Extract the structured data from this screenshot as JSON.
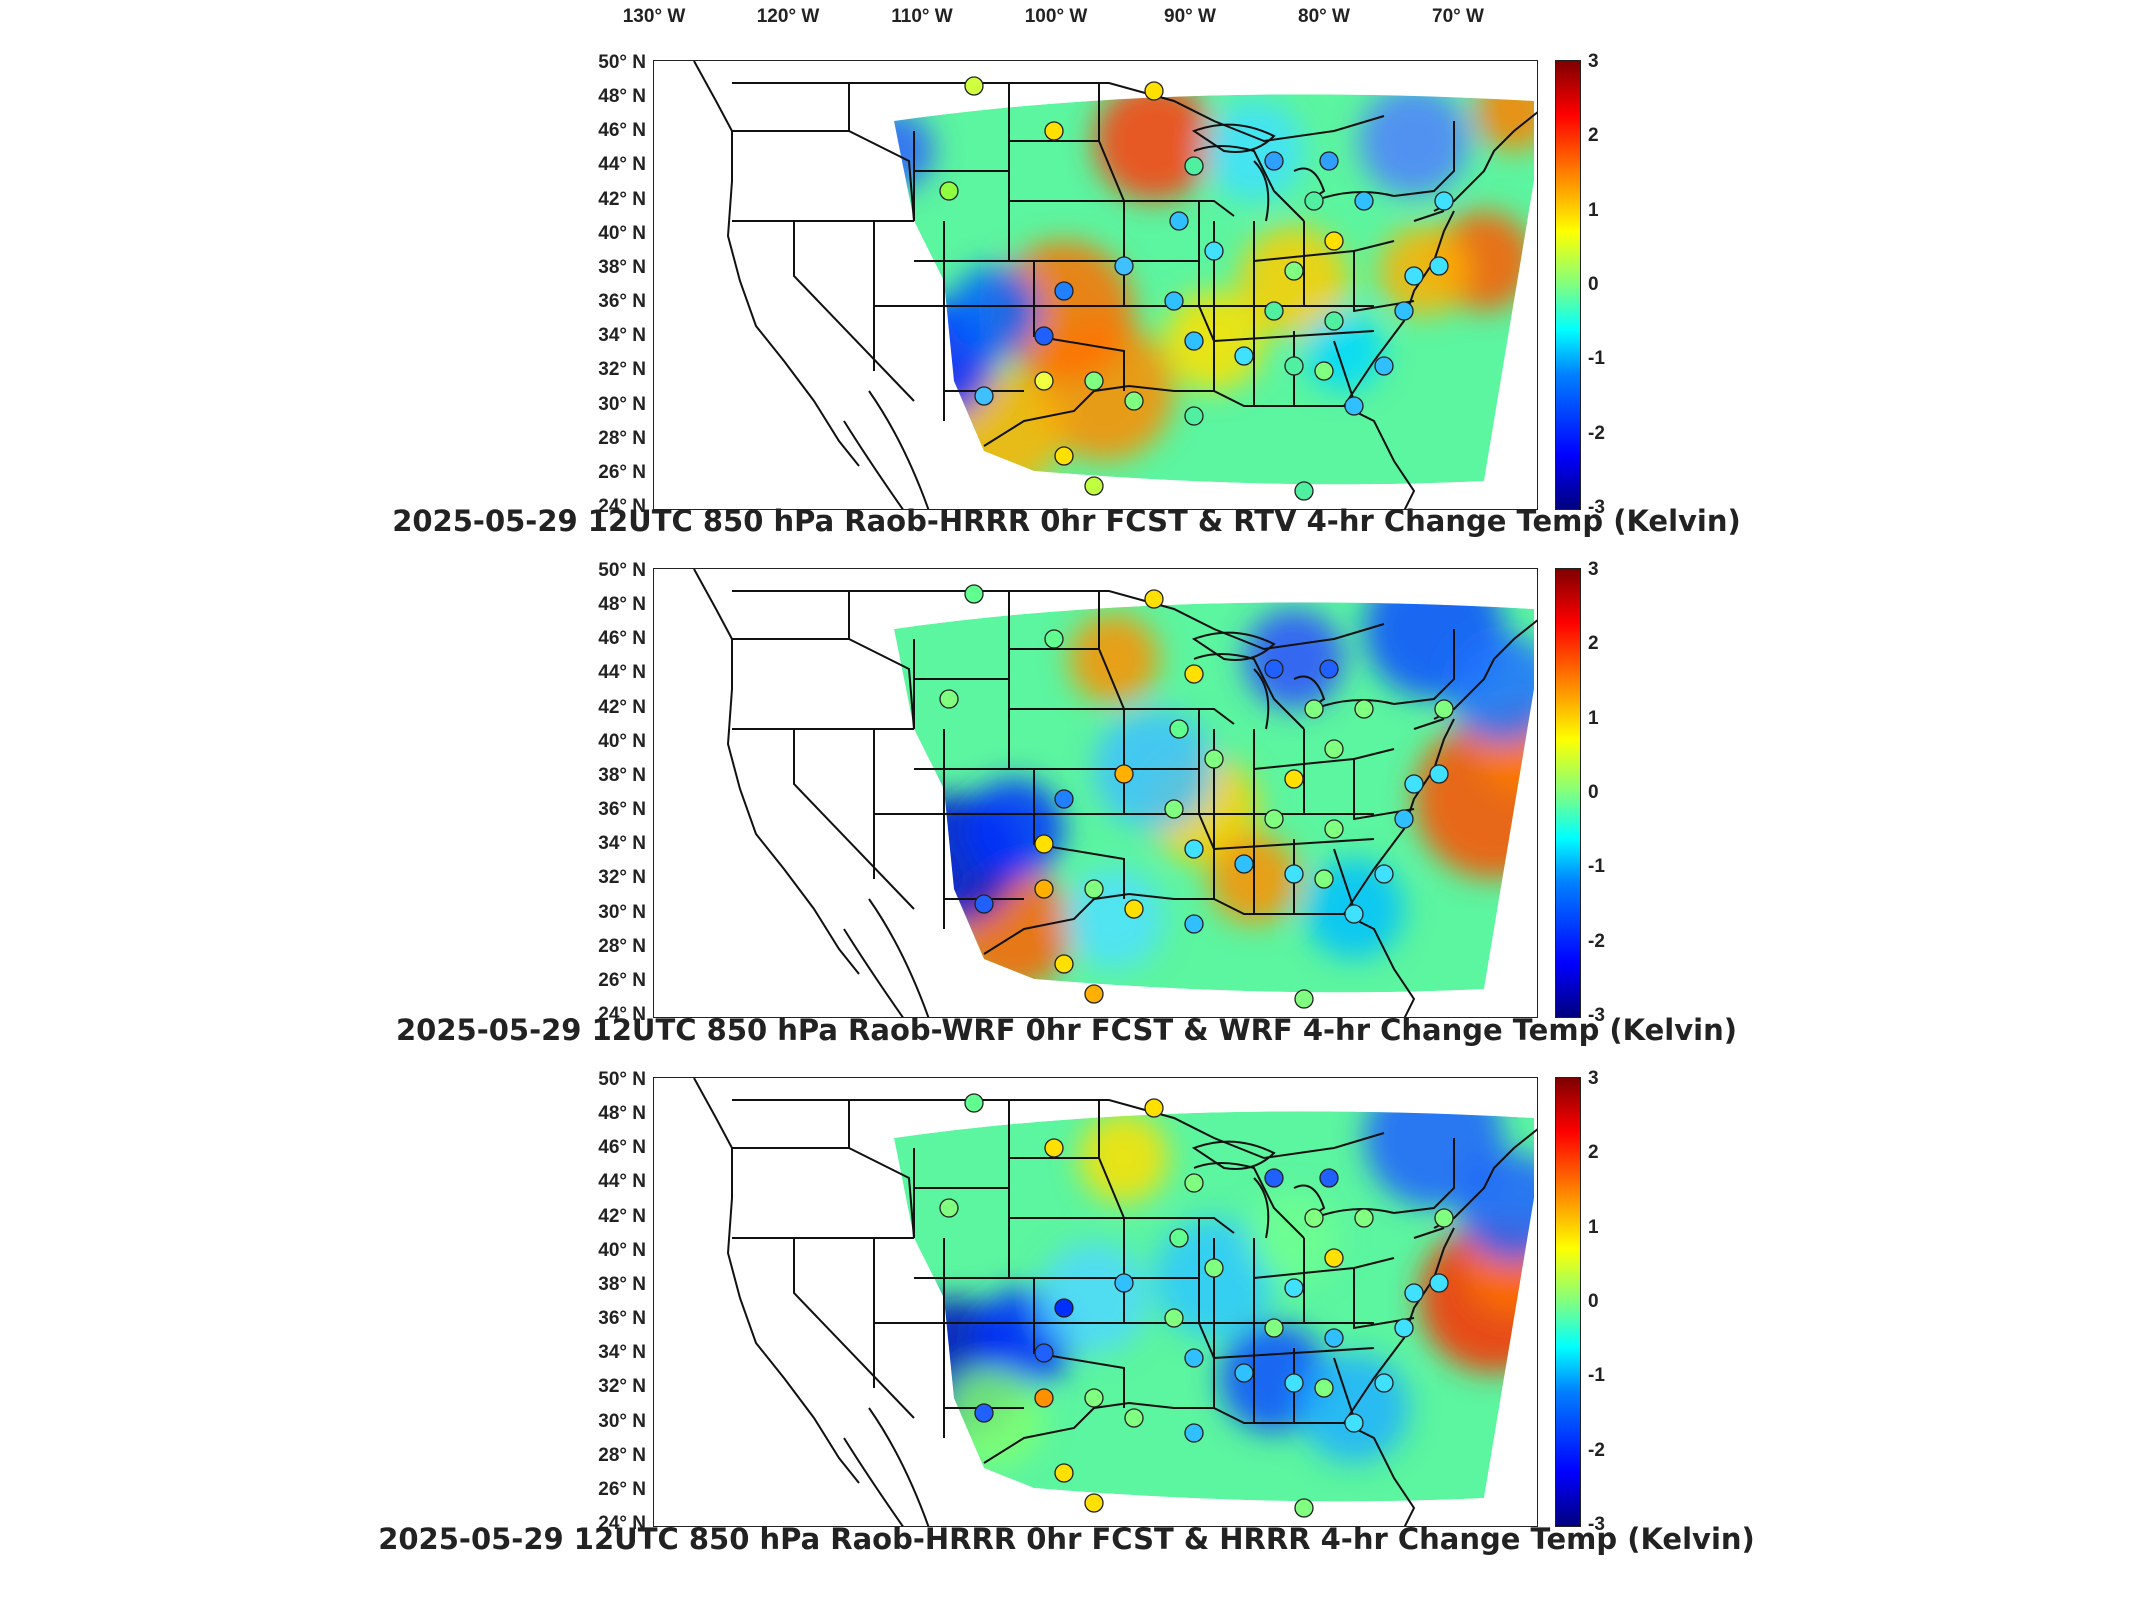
{
  "longitude_labels": [
    "130° W",
    "120° W",
    "110° W",
    "100° W",
    "90° W",
    "80° W",
    "70° W"
  ],
  "latitude_labels": [
    "50° N",
    "48° N",
    "46° N",
    "44° N",
    "42° N",
    "40° N",
    "38° N",
    "36° N",
    "34° N",
    "32° N",
    "30° N",
    "28° N",
    "26° N",
    "24° N"
  ],
  "colorbar": {
    "ticks": [
      "3",
      "2",
      "1",
      "0",
      "-1",
      "-2",
      "-3"
    ],
    "range": [
      -3,
      3
    ],
    "colormap": "jet"
  },
  "panels": [
    {
      "title": "2025-05-29 12UTC 850 hPa Raob-HRRR 0hr FCST & RTV 4-hr Change Temp (Kelvin)",
      "warm_regions": [
        "north-plains",
        "east-coast",
        "central",
        "texas-south"
      ],
      "cool_regions": [
        "southwest-plains"
      ]
    },
    {
      "title": "2025-05-29 12UTC 850 hPa Raob-WRF 0hr FCST & WRF 4-hr Change Temp (Kelvin)",
      "warm_regions": [
        "offshore-atlantic",
        "texas-south",
        "north-plains"
      ],
      "cool_regions": [
        "southwest-plains",
        "great-lakes",
        "northeast"
      ]
    },
    {
      "title": "2025-05-29 12UTC 850 hPa Raob-HRRR 0hr FCST & HRRR 4-hr Change Temp (Kelvin)",
      "warm_regions": [
        "offshore-atlantic",
        "north-plains"
      ],
      "cool_regions": [
        "southwest-plains",
        "northeast",
        "southeast"
      ]
    }
  ]
}
